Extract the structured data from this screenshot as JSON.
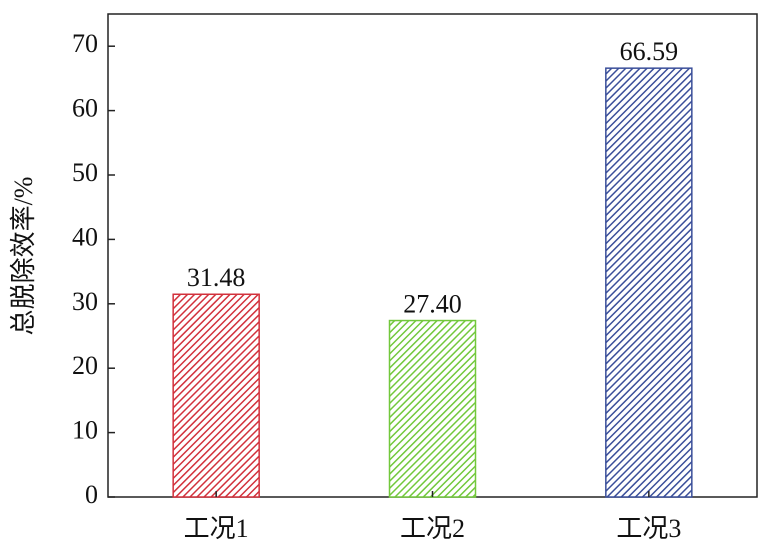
{
  "chart_data": {
    "type": "bar",
    "y_label": "总脱除效率/%",
    "categories": [
      "工况1",
      "工况2",
      "工况3"
    ],
    "values": [
      31.48,
      27.4,
      66.59
    ],
    "value_labels": [
      "31.48",
      "27.40",
      "66.59"
    ],
    "colors": [
      "#d2313c",
      "#72c83c",
      "#3b4f9a"
    ],
    "ylim": [
      0,
      75
    ],
    "yticks": [
      0,
      10,
      20,
      30,
      40,
      50,
      60,
      70
    ]
  }
}
